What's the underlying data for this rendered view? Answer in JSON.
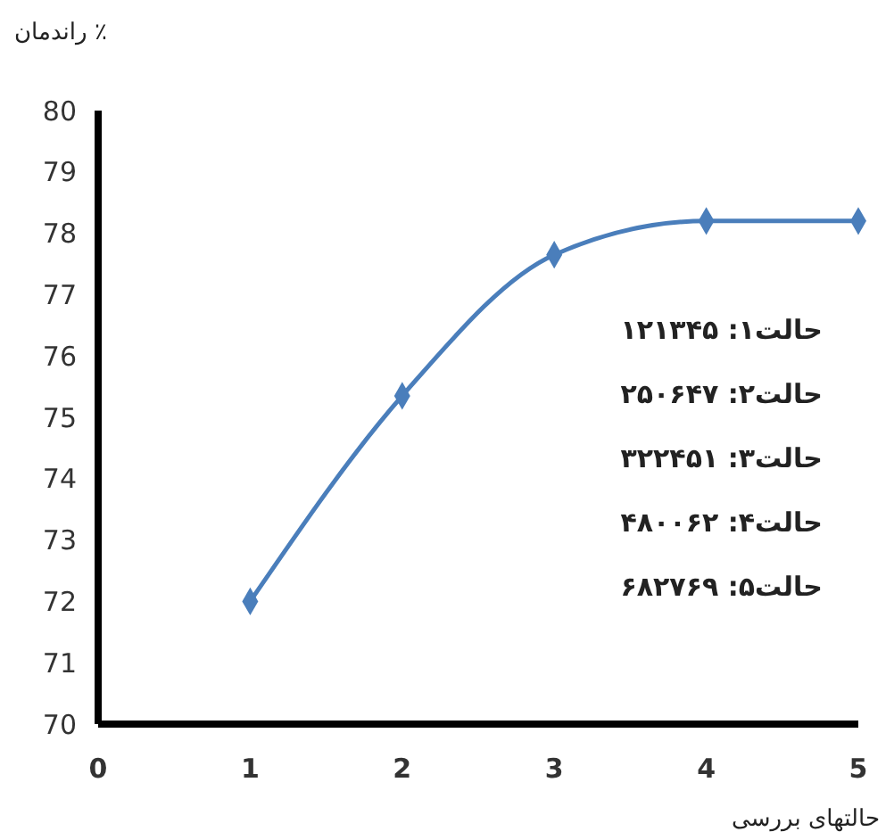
{
  "chart_data": {
    "type": "line",
    "ylabel": "راندمان ٪",
    "xlabel": "حالتهای بررسی",
    "x": [
      1,
      2,
      3,
      4,
      5
    ],
    "series": [
      {
        "color": "#4a7ebb",
        "values": [
          72,
          75.35,
          77.65,
          78.2,
          78.2
        ]
      }
    ],
    "xlim": [
      0,
      5
    ],
    "xticks": [
      0,
      1,
      2,
      3,
      4,
      5
    ],
    "ylim": [
      70,
      80
    ],
    "yticks": [
      70,
      71,
      72,
      73,
      74,
      75,
      76,
      77,
      78,
      79,
      80
    ],
    "grid": false,
    "marker": "diamond",
    "line_style": "solid",
    "annotations": [
      "حالت۱: ۱۲۱۳۴۵",
      "حالت۲: ۲۵۰۶۴۷",
      "حالت۳: ۳۲۲۴۵۱",
      "حالت۴: ۴۸۰۰۶۲",
      "حالت۵: ۶۸۲۷۶۹"
    ]
  }
}
